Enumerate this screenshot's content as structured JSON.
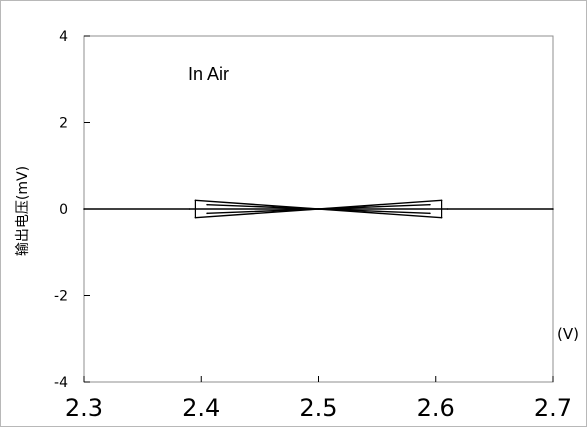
{
  "chart_data": {
    "type": "line",
    "annotation": "In Air",
    "ylabel": "输出电压(mV)",
    "xunit": "(V)",
    "xlim": [
      2.3,
      2.7
    ],
    "ylim": [
      -4,
      4
    ],
    "xticks": [
      "2.3",
      "2.4",
      "2.5",
      "2.6",
      "2.7"
    ],
    "yticks": [
      "4",
      "2",
      "0",
      "-2",
      "-4"
    ],
    "grid": false,
    "series": [
      {
        "values_x": [
          2.3,
          2.39,
          2.5,
          2.61,
          2.7
        ],
        "values_y": [
          0,
          0,
          0,
          0,
          0
        ]
      },
      {
        "values_x": [
          2.395,
          2.5,
          2.605
        ],
        "values_y": [
          0.2,
          0,
          0.2
        ]
      },
      {
        "values_x": [
          2.395,
          2.5,
          2.605
        ],
        "values_y": [
          -0.2,
          0,
          -0.2
        ]
      },
      {
        "values_x": [
          2.405,
          2.5,
          2.595
        ],
        "values_y": [
          0.1,
          0,
          0.1
        ]
      },
      {
        "values_x": [
          2.405,
          2.5,
          2.595
        ],
        "values_y": [
          -0.1,
          0,
          -0.1
        ]
      }
    ]
  }
}
